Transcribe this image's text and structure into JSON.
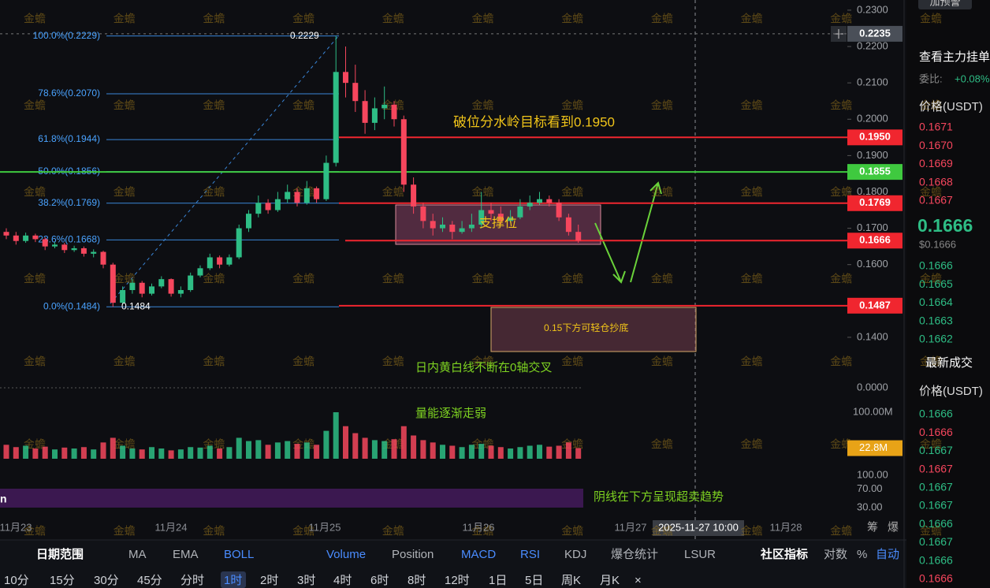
{
  "watermark": "金蟾",
  "chart_data": {
    "type": "candlestick",
    "ylim": [
      0.1363,
      0.2328
    ],
    "yticks": [
      {
        "value": 0.23,
        "label": "0.2300"
      },
      {
        "value": 0.22,
        "label": "0.2200"
      },
      {
        "value": 0.21,
        "label": "0.2100"
      },
      {
        "value": 0.2,
        "label": "0.2000"
      },
      {
        "value": 0.19,
        "label": "0.1900"
      },
      {
        "value": 0.18,
        "label": "0.1800"
      },
      {
        "value": 0.17,
        "label": "0.1700"
      },
      {
        "value": 0.16,
        "label": "0.1600"
      },
      {
        "value": 0.14,
        "label": "0.1400"
      }
    ],
    "up_color": "#2ebd85",
    "down_color": "#f6465d",
    "candles": [
      [
        0.169,
        0.17,
        0.167,
        0.168
      ],
      [
        0.168,
        0.169,
        0.1655,
        0.1665
      ],
      [
        0.1665,
        0.1688,
        0.166,
        0.168
      ],
      [
        0.168,
        0.1685,
        0.1662,
        0.167
      ],
      [
        0.167,
        0.1675,
        0.164,
        0.165
      ],
      [
        0.165,
        0.1662,
        0.1645,
        0.1655
      ],
      [
        0.1655,
        0.166,
        0.1632,
        0.164
      ],
      [
        0.164,
        0.1652,
        0.1635,
        0.1645
      ],
      [
        0.1645,
        0.165,
        0.1622,
        0.163
      ],
      [
        0.163,
        0.1642,
        0.162,
        0.1635
      ],
      [
        0.1635,
        0.1638,
        0.159,
        0.16
      ],
      [
        0.16,
        0.1605,
        0.1484,
        0.1495
      ],
      [
        0.1495,
        0.154,
        0.149,
        0.153
      ],
      [
        0.153,
        0.156,
        0.152,
        0.155
      ],
      [
        0.155,
        0.1555,
        0.151,
        0.152
      ],
      [
        0.152,
        0.1548,
        0.1515,
        0.154
      ],
      [
        0.154,
        0.1568,
        0.1535,
        0.156
      ],
      [
        0.156,
        0.1562,
        0.1512,
        0.152
      ],
      [
        0.152,
        0.154,
        0.151,
        0.153
      ],
      [
        0.153,
        0.1578,
        0.1525,
        0.157
      ],
      [
        0.157,
        0.1598,
        0.1565,
        0.159
      ],
      [
        0.159,
        0.163,
        0.1585,
        0.162
      ],
      [
        0.162,
        0.1625,
        0.159,
        0.16
      ],
      [
        0.16,
        0.1628,
        0.1595,
        0.162
      ],
      [
        0.162,
        0.171,
        0.1615,
        0.17
      ],
      [
        0.17,
        0.175,
        0.169,
        0.174
      ],
      [
        0.174,
        0.179,
        0.173,
        0.177
      ],
      [
        0.177,
        0.178,
        0.174,
        0.175
      ],
      [
        0.175,
        0.18,
        0.1745,
        0.178
      ],
      [
        0.178,
        0.182,
        0.177,
        0.18
      ],
      [
        0.18,
        0.181,
        0.176,
        0.177
      ],
      [
        0.177,
        0.183,
        0.1765,
        0.181
      ],
      [
        0.181,
        0.1815,
        0.177,
        0.178
      ],
      [
        0.178,
        0.19,
        0.1775,
        0.188
      ],
      [
        0.188,
        0.2229,
        0.187,
        0.213
      ],
      [
        0.213,
        0.22,
        0.206,
        0.21
      ],
      [
        0.21,
        0.215,
        0.202,
        0.205
      ],
      [
        0.205,
        0.208,
        0.196,
        0.199
      ],
      [
        0.199,
        0.206,
        0.197,
        0.203
      ],
      [
        0.203,
        0.209,
        0.2,
        0.204
      ],
      [
        0.204,
        0.205,
        0.198,
        0.2
      ],
      [
        0.2,
        0.201,
        0.18,
        0.182
      ],
      [
        0.182,
        0.184,
        0.174,
        0.176
      ],
      [
        0.176,
        0.177,
        0.17,
        0.172
      ],
      [
        0.172,
        0.174,
        0.168,
        0.17
      ],
      [
        0.17,
        0.173,
        0.169,
        0.171
      ],
      [
        0.171,
        0.172,
        0.167,
        0.169
      ],
      [
        0.169,
        0.172,
        0.1685,
        0.17
      ],
      [
        0.17,
        0.174,
        0.169,
        0.171
      ],
      [
        0.171,
        0.18,
        0.17,
        0.175
      ],
      [
        0.175,
        0.177,
        0.172,
        0.174
      ],
      [
        0.174,
        0.176,
        0.171,
        0.172
      ],
      [
        0.172,
        0.175,
        0.1715,
        0.173
      ],
      [
        0.173,
        0.178,
        0.1725,
        0.176
      ],
      [
        0.176,
        0.179,
        0.175,
        0.177
      ],
      [
        0.177,
        0.18,
        0.1765,
        0.178
      ],
      [
        0.178,
        0.179,
        0.176,
        0.177
      ],
      [
        0.177,
        0.178,
        0.172,
        0.173
      ],
      [
        0.173,
        0.174,
        0.168,
        0.169
      ],
      [
        0.169,
        0.171,
        0.166,
        0.1666
      ]
    ],
    "fib_levels": [
      {
        "value": 0.2229,
        "label": "100.0%(0.2229)"
      },
      {
        "value": 0.207,
        "label": "78.6%(0.2070)"
      },
      {
        "value": 0.1944,
        "label": "61.8%(0.1944)"
      },
      {
        "value": 0.1856,
        "label": "50.0%(0.1856)"
      },
      {
        "value": 0.1769,
        "label": "38.2%(0.1769)"
      },
      {
        "value": 0.1668,
        "label": "23.6%(0.1668)"
      },
      {
        "value": 0.1484,
        "label": "0.0%(0.1484)"
      }
    ],
    "levels": [
      {
        "value": 0.2235,
        "label": "0.2235",
        "color": "#4a4f58"
      },
      {
        "value": 0.195,
        "label": "0.1950",
        "color": "#f0262f"
      },
      {
        "value": 0.1855,
        "label": "0.1855",
        "color": "#3fc93f"
      },
      {
        "value": 0.1769,
        "label": "0.1769",
        "color": "#f0262f"
      },
      {
        "value": 0.1666,
        "label": "0.1666",
        "color": "#f0262f"
      },
      {
        "value": 0.1487,
        "label": "0.1487",
        "color": "#f0262f"
      }
    ],
    "high_label": {
      "value": 0.2229,
      "label": "0.2229"
    },
    "low_label": {
      "value": 0.1484,
      "label": "0.1484"
    },
    "annotations": {
      "target": "破位分水岭目标看到0.1950",
      "support": "支撑位",
      "bottom": "0.15下方可轻仓抄底",
      "macd_note": "日内黄白线不断在0轴交叉",
      "volume_note": "量能逐渐走弱",
      "rsi_note": "阴线在下方呈现超卖趋势"
    },
    "volume": {
      "values": [
        30,
        25,
        28,
        22,
        26,
        20,
        24,
        22,
        25,
        20,
        35,
        45,
        28,
        22,
        20,
        25,
        22,
        18,
        20,
        25,
        24,
        28,
        22,
        25,
        45,
        38,
        40,
        30,
        35,
        38,
        32,
        35,
        30,
        60,
        100,
        70,
        55,
        45,
        40,
        38,
        42,
        70,
        50,
        40,
        35,
        30,
        28,
        25,
        30,
        32,
        28,
        25,
        22,
        25,
        28,
        30,
        26,
        28,
        35,
        22.8
      ],
      "yticks": [
        {
          "value": 100,
          "label": "100.00M"
        }
      ],
      "current": {
        "value": 22.8,
        "label": "22.8M"
      }
    },
    "macd": {
      "yticks": [
        {
          "value": 0,
          "label": "0.0000"
        }
      ]
    },
    "rsi": {
      "label": "n",
      "yticks": [
        {
          "value": 100,
          "label": "100.00"
        },
        {
          "value": 70,
          "label": "70.00"
        },
        {
          "value": 30,
          "label": "30.00"
        }
      ]
    },
    "x_labels": [
      "11月23",
      "11月24",
      "11月25",
      "11月26",
      "11月27",
      "11月28"
    ],
    "crosshair_time": "2025-11-27 10:00",
    "corner_labels": [
      "筹",
      "爆"
    ]
  },
  "toolbar": {
    "row1": [
      "日期范围",
      "MA",
      "EMA",
      "BOLL",
      "Volume",
      "Position",
      "MACD",
      "RSI",
      "KDJ",
      "爆仓统计",
      "LSUR",
      "社区指标",
      "对数",
      "%",
      "自动"
    ],
    "row2": [
      "10分",
      "15分",
      "30分",
      "45分",
      "分时",
      "1时",
      "2时",
      "3时",
      "4时",
      "6时",
      "8时",
      "12时",
      "1日",
      "5日",
      "周K",
      "月K",
      "×"
    ]
  },
  "side_panel": {
    "alert": "加预警",
    "title": "查看主力挂单",
    "ratio_label": "委比:",
    "ratio": "+0.08%",
    "price_header": "价格(USDT)",
    "asks": [
      "0.1671",
      "0.1670",
      "0.1669",
      "0.1668",
      "0.1667"
    ],
    "last": "0.1666",
    "last_usd": "$0.1666",
    "bids": [
      "0.1666",
      "0.1665",
      "0.1664",
      "0.1663",
      "0.1662"
    ],
    "trades_title": "最新成交",
    "trades_header": "价格(USDT)",
    "trades": [
      {
        "price": "0.1666",
        "side": "buy"
      },
      {
        "price": "0.1666",
        "side": "sell"
      },
      {
        "price": "0.1667",
        "side": "buy"
      },
      {
        "price": "0.1667",
        "side": "sell"
      },
      {
        "price": "0.1667",
        "side": "buy"
      },
      {
        "price": "0.1667",
        "side": "buy"
      },
      {
        "price": "0.1666",
        "side": "buy"
      },
      {
        "price": "0.1667",
        "side": "buy"
      },
      {
        "price": "0.1666",
        "side": "buy"
      },
      {
        "price": "0.1666",
        "side": "sell"
      }
    ]
  }
}
